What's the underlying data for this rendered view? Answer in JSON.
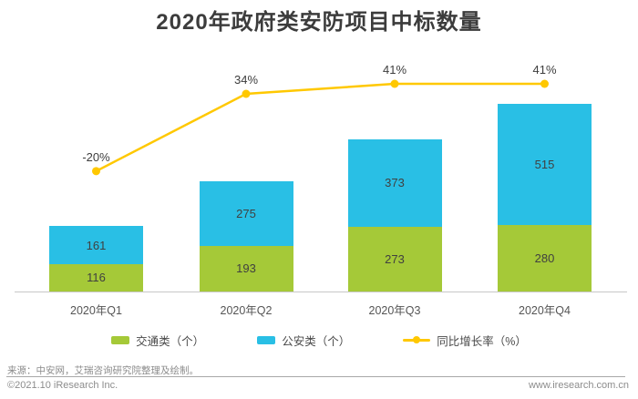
{
  "title": "2020年政府类安防项目中标数量",
  "colors": {
    "green": "#a5c938",
    "blue": "#29bfe5",
    "yellow": "#ffc800",
    "title_text": "#3c3c3c",
    "bar_label": "#404040",
    "pct_label": "#3d3d3d",
    "axis_label": "#555555",
    "axis_line": "#c8c8c8",
    "footer_text": "#8c8c8c"
  },
  "chart_data": {
    "type": "bar",
    "subtype": "stacked-bars-with-line",
    "categories": [
      "2020年Q1",
      "2020年Q2",
      "2020年Q3",
      "2020年Q4"
    ],
    "series": [
      {
        "name": "交通类（个）",
        "type": "bar",
        "color_key": "green",
        "values": [
          116,
          193,
          273,
          280
        ]
      },
      {
        "name": "公安类（个）",
        "type": "bar",
        "color_key": "blue",
        "values": [
          161,
          275,
          373,
          515
        ]
      },
      {
        "name": "同比增长率（%）",
        "type": "line",
        "color_key": "yellow",
        "values": [
          -20,
          34,
          41,
          41
        ],
        "labels": [
          "-20%",
          "34%",
          "41%",
          "41%"
        ]
      }
    ],
    "title": "2020年政府类安防项目中标数量",
    "xlabel": "",
    "ylabel": "",
    "grid": false,
    "legend_position": "bottom",
    "bar_value_labels_inside": true
  },
  "legend": [
    {
      "label": "交通类（个）",
      "swatch": "green-rect"
    },
    {
      "label": "公安类（个）",
      "swatch": "blue-rect"
    },
    {
      "label": "同比增长率（%）",
      "swatch": "yellow-line-dot"
    }
  ],
  "footer": {
    "source": "来源：中安网，艾瑞咨询研究院整理及绘制。",
    "copyright": "©2021.10 iResearch Inc.",
    "website": "www.iresearch.com.cn"
  }
}
